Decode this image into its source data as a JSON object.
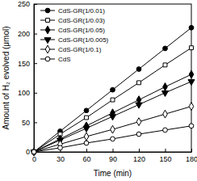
{
  "chart_data": {
    "type": "line",
    "x_label": "Time (min)",
    "y_label": "Amount of H₂ evolved (μmol)",
    "x": [
      0,
      30,
      60,
      90,
      120,
      150,
      180
    ],
    "xlim": [
      0,
      180
    ],
    "xticks": [
      0,
      30,
      60,
      90,
      120,
      150,
      180
    ],
    "ylim": [
      0,
      250
    ],
    "yticks": [
      0,
      50,
      100,
      150,
      200,
      250
    ],
    "legend": "top-left",
    "series": [
      {
        "name": "CdS-GR(1/0.01)",
        "color": "#000000",
        "marker": "circle",
        "values": [
          0,
          35,
          70,
          105,
          140,
          175,
          210
        ]
      },
      {
        "name": "CdS-GR(1/0.03)",
        "color": "#000000",
        "marker": "square-open",
        "values": [
          0,
          30,
          58,
          88,
          117,
          147,
          176
        ]
      },
      {
        "name": "CdS-GR(1/0.05)",
        "color": "#000000",
        "marker": "diamond",
        "values": [
          0,
          22,
          44,
          66,
          88,
          110,
          131
        ]
      },
      {
        "name": "CdS-GR(1/0.005)",
        "color": "#000000",
        "marker": "triangle-down",
        "values": [
          0,
          20,
          40,
          60,
          80,
          100,
          119
        ]
      },
      {
        "name": "CdS-GR(1/0.1)",
        "color": "#000000",
        "marker": "diamond-open",
        "values": [
          0,
          13,
          26,
          38,
          51,
          64,
          77
        ]
      },
      {
        "name": "CdS",
        "color": "#000000",
        "marker": "circle-open",
        "values": [
          0,
          7,
          15,
          22,
          30,
          37,
          44
        ]
      }
    ]
  }
}
